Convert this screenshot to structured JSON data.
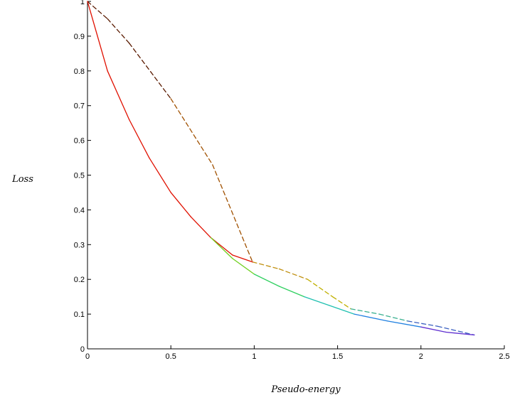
{
  "chart_data": {
    "type": "line",
    "title": "",
    "xlabel": "Pseudo-energy",
    "ylabel": "Loss",
    "xlim": [
      0,
      2.5
    ],
    "ylim": [
      0,
      1
    ],
    "xticks": [
      "0",
      "0.5",
      "1",
      "1.5",
      "2",
      "2.5"
    ],
    "yticks": [
      "0",
      "0.1",
      "0.2",
      "0.3",
      "0.4",
      "0.5",
      "0.6",
      "0.7",
      "0.8",
      "0.9",
      "1"
    ],
    "grid": false,
    "legend": "none",
    "series": [
      {
        "style": "dashed",
        "colors": [
          "#5a1a00",
          "#a05000",
          "#c09010",
          "#c0b000",
          "#3ab090",
          "#3a60c0"
        ],
        "x": [
          0,
          0.12,
          0.25,
          0.5,
          0.75,
          0.99,
          1.15,
          1.32,
          1.47,
          1.58,
          1.75,
          1.92,
          2.1,
          2.32
        ],
        "y": [
          1.0,
          0.95,
          0.88,
          0.72,
          0.53,
          0.25,
          0.23,
          0.2,
          0.15,
          0.115,
          0.1,
          0.08,
          0.065,
          0.04
        ]
      },
      {
        "style": "solid",
        "colors": [
          "#e01000"
        ],
        "x": [
          0,
          0.12,
          0.25,
          0.37,
          0.5,
          0.62,
          0.74,
          0.87,
          0.99
        ],
        "y": [
          1.0,
          0.8,
          0.66,
          0.55,
          0.45,
          0.38,
          0.32,
          0.27,
          0.25
        ]
      },
      {
        "style": "solid",
        "colors": [
          "#70d020",
          "#30d060",
          "#20c0b0",
          "#2080e0",
          "#6030d0"
        ],
        "x": [
          0.74,
          0.87,
          1.0,
          1.15,
          1.3,
          1.45,
          1.6,
          1.8,
          2.0,
          2.15,
          2.32
        ],
        "y": [
          0.32,
          0.26,
          0.215,
          0.18,
          0.15,
          0.125,
          0.1,
          0.08,
          0.063,
          0.048,
          0.04
        ]
      }
    ]
  }
}
